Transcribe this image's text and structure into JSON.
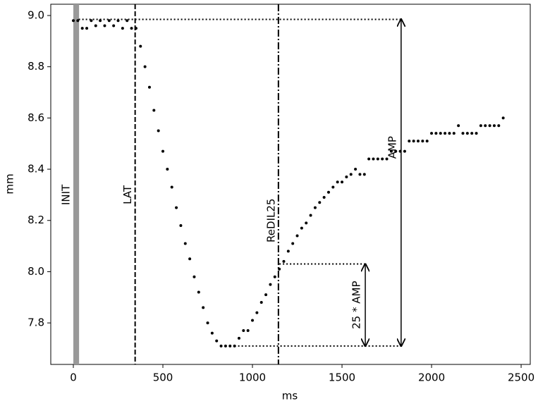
{
  "chart_data": {
    "type": "scatter",
    "xlabel": "ms",
    "ylabel": "mm",
    "xlim": [
      -126,
      2551
    ],
    "ylim": [
      7.638,
      9.044
    ],
    "xticks": [
      0,
      500,
      1000,
      1500,
      2000,
      2500
    ],
    "yticks": [
      7.8,
      {
        "value": 8.0,
        "label": "8.0"
      },
      8.2,
      8.4,
      8.6,
      8.8,
      {
        "value": 9.0,
        "label": "9.0"
      }
    ],
    "color": "#000000",
    "x": [
      0,
      25,
      50,
      75,
      100,
      125,
      150,
      175,
      200,
      225,
      250,
      275,
      300,
      325,
      350,
      375,
      400,
      425,
      450,
      475,
      500,
      525,
      550,
      575,
      600,
      625,
      650,
      675,
      700,
      725,
      750,
      775,
      800,
      825,
      850,
      875,
      900,
      925,
      950,
      975,
      1000,
      1025,
      1050,
      1075,
      1100,
      1125,
      1150,
      1175,
      1200,
      1225,
      1250,
      1275,
      1300,
      1325,
      1350,
      1375,
      1400,
      1425,
      1450,
      1475,
      1500,
      1525,
      1550,
      1575,
      1600,
      1625,
      1650,
      1675,
      1700,
      1725,
      1750,
      1775,
      1800,
      1825,
      1850,
      1875,
      1900,
      1925,
      1950,
      1975,
      2000,
      2025,
      2050,
      2075,
      2100,
      2125,
      2150,
      2175,
      2200,
      2225,
      2250,
      2275,
      2300,
      2325,
      2350,
      2375,
      2400
    ],
    "values": [
      8.98,
      8.98,
      8.95,
      8.95,
      8.98,
      8.96,
      8.98,
      8.96,
      8.98,
      8.96,
      8.98,
      8.95,
      8.98,
      8.95,
      8.95,
      8.88,
      8.8,
      8.72,
      8.63,
      8.55,
      8.47,
      8.4,
      8.33,
      8.25,
      8.18,
      8.11,
      8.05,
      7.98,
      7.92,
      7.86,
      7.8,
      7.76,
      7.73,
      7.71,
      7.71,
      7.71,
      7.71,
      7.74,
      7.77,
      7.77,
      7.81,
      7.84,
      7.88,
      7.91,
      7.95,
      7.98,
      8.01,
      8.04,
      8.08,
      8.11,
      8.14,
      8.17,
      8.19,
      8.22,
      8.25,
      8.27,
      8.29,
      8.31,
      8.33,
      8.35,
      8.35,
      8.37,
      8.38,
      8.4,
      8.38,
      8.38,
      8.44,
      8.44,
      8.44,
      8.44,
      8.44,
      8.47,
      8.47,
      8.47,
      8.47,
      8.51,
      8.51,
      8.51,
      8.51,
      8.51,
      8.54,
      8.54,
      8.54,
      8.54,
      8.54,
      8.54,
      8.57,
      8.54,
      8.54,
      8.54,
      8.54,
      8.57,
      8.57,
      8.57,
      8.57,
      8.57,
      8.6
    ],
    "vlines": [
      {
        "label": "INIT",
        "x": [
          0,
          32
        ],
        "style": "band"
      },
      {
        "label": "LAT",
        "x": 345,
        "style": "dashed"
      },
      {
        "label": "ReDIL25",
        "x": 1145,
        "style": "dashdot"
      }
    ],
    "hlines": [
      {
        "y": 8.985,
        "x": [
          30,
          1830
        ]
      },
      {
        "y": 8.03,
        "x": [
          1150,
          1630
        ]
      },
      {
        "y": 7.71,
        "x": [
          900,
          1830
        ]
      }
    ],
    "arrows": [
      {
        "label": "AMP",
        "x": 1830,
        "y": [
          8.985,
          7.71
        ]
      },
      {
        "label": "25 * AMP",
        "x": 1630,
        "y": [
          8.03,
          7.71
        ]
      }
    ]
  }
}
